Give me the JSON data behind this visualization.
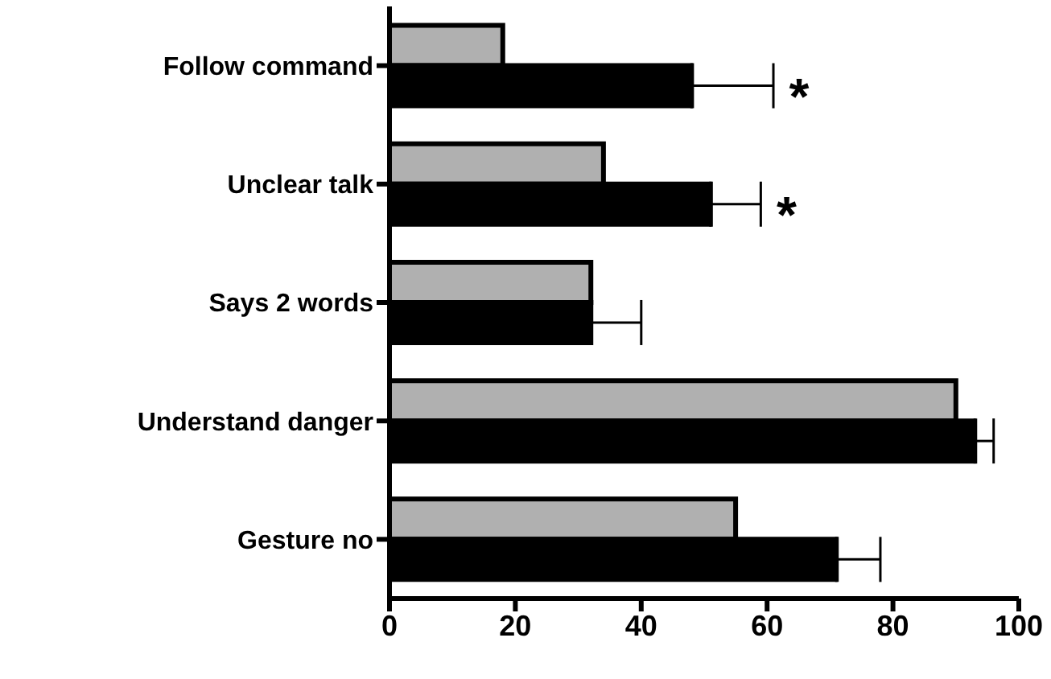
{
  "chart_data": {
    "type": "bar",
    "orientation": "horizontal",
    "categories": [
      "Follow command",
      "Unclear talk",
      "Says 2 words",
      "Understand danger",
      "Gesture no"
    ],
    "series": [
      {
        "color": "#b0b0b0",
        "values": [
          18,
          34,
          32,
          90,
          55
        ]
      },
      {
        "color": "#000000",
        "values": [
          48,
          51,
          32,
          93,
          71
        ],
        "errors": [
          [
            48,
            61
          ],
          [
            51,
            59
          ],
          [
            32,
            40
          ],
          [
            93,
            96
          ],
          [
            71,
            78
          ]
        ]
      }
    ],
    "xlim": [
      0,
      100
    ],
    "xticks": [
      0,
      20,
      40,
      60,
      80,
      100
    ],
    "grid": false,
    "legend": false,
    "annotations": [
      {
        "text": "*",
        "x": 61,
        "y": "Follow command"
      },
      {
        "text": "*",
        "x": 59,
        "y": "Unclear talk"
      }
    ]
  }
}
